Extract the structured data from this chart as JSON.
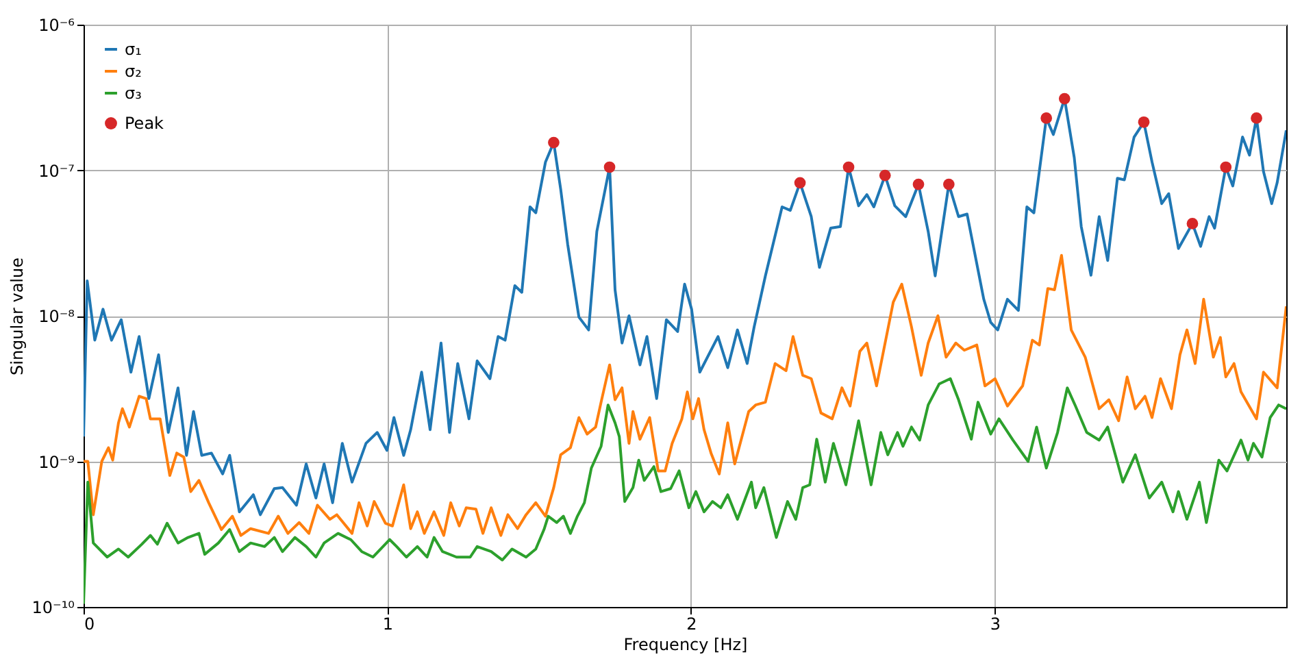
{
  "chart_data": {
    "type": "line",
    "xlabel": "Frequency [Hz]",
    "ylabel": "Singular value",
    "log": "y",
    "grid": true,
    "legend": "top left",
    "line_style": "solid",
    "marker": "none",
    "xlim": [
      0,
      3.96
    ],
    "xticks": [
      {
        "value": 0,
        "label": "0"
      },
      {
        "value": 1,
        "label": "1"
      },
      {
        "value": 2,
        "label": "2"
      },
      {
        "value": 3,
        "label": "3"
      }
    ],
    "ylim": [
      1e-10,
      1e-06
    ],
    "yticks": [
      {
        "value": 1e-10,
        "label": "10⁻¹⁰"
      },
      {
        "value": 1e-09,
        "label": "10⁻⁹"
      },
      {
        "value": 1e-08,
        "label": "10⁻⁸"
      },
      {
        "value": 1e-07,
        "label": "10⁻⁷"
      },
      {
        "value": 1e-06,
        "label": "10⁻⁶"
      }
    ],
    "series": [
      {
        "name": "σ₁",
        "color": "#1f77b4",
        "x": [
          0,
          0.012,
          0.037,
          0.064,
          0.092,
          0.124,
          0.156,
          0.183,
          0.215,
          0.247,
          0.279,
          0.311,
          0.339,
          0.362,
          0.389,
          0.421,
          0.458,
          0.481,
          0.513,
          0.559,
          0.582,
          0.628,
          0.655,
          0.701,
          0.733,
          0.765,
          0.792,
          0.82,
          0.852,
          0.884,
          0.93,
          0.967,
          0.999,
          1.022,
          1.054,
          1.077,
          1.113,
          1.141,
          1.177,
          1.205,
          1.232,
          1.269,
          1.296,
          1.338,
          1.365,
          1.388,
          1.42,
          1.443,
          1.47,
          1.489,
          1.521,
          1.548,
          1.571,
          1.594,
          1.631,
          1.663,
          1.69,
          1.732,
          1.75,
          1.773,
          1.796,
          1.832,
          1.855,
          1.887,
          1.919,
          1.956,
          1.979,
          2.002,
          2.029,
          2.089,
          2.121,
          2.153,
          2.185,
          2.208,
          2.245,
          2.3,
          2.327,
          2.359,
          2.396,
          2.423,
          2.46,
          2.492,
          2.519,
          2.552,
          2.579,
          2.602,
          2.639,
          2.671,
          2.707,
          2.749,
          2.781,
          2.804,
          2.849,
          2.881,
          2.909,
          2.964,
          2.987,
          3.01,
          3.042,
          3.078,
          3.106,
          3.129,
          3.17,
          3.193,
          3.23,
          3.262,
          3.285,
          3.317,
          3.344,
          3.372,
          3.404,
          3.427,
          3.459,
          3.491,
          3.518,
          3.55,
          3.573,
          3.605,
          3.651,
          3.678,
          3.706,
          3.724,
          3.761,
          3.784,
          3.816,
          3.839,
          3.862,
          3.885,
          3.912,
          3.93,
          3.96
        ],
        "values": [
          1.48e-09,
          1.74e-08,
          6.8e-09,
          1.11e-08,
          6.8e-09,
          9.4e-09,
          4.1e-09,
          7.2e-09,
          2.7e-09,
          5.4e-09,
          1.58e-09,
          3.2e-09,
          1.1e-09,
          2.2e-09,
          1.1e-09,
          1.14e-09,
          8.2e-10,
          1.1e-09,
          4.5e-10,
          5.9e-10,
          4.3e-10,
          6.5e-10,
          6.6e-10,
          5e-10,
          9.6e-10,
          5.6e-10,
          9.6e-10,
          5.2e-10,
          1.33e-09,
          7.2e-10,
          1.33e-09,
          1.58e-09,
          1.19e-09,
          2e-09,
          1.1e-09,
          1.65e-09,
          4.1e-09,
          1.65e-09,
          6.5e-09,
          1.58e-09,
          4.7e-09,
          1.96e-09,
          4.9e-09,
          3.7e-09,
          7.2e-09,
          6.8e-09,
          1.61e-08,
          1.45e-08,
          5.6e-08,
          5.1e-08,
          1.14e-07,
          1.55e-07,
          7.4e-08,
          3.1e-08,
          9.8e-09,
          8e-09,
          3.8e-08,
          1.05e-07,
          1.51e-08,
          6.5e-09,
          1e-08,
          4.6e-09,
          7.2e-09,
          2.7e-09,
          9.4e-09,
          7.8e-09,
          1.65e-08,
          1.11e-08,
          4.1e-09,
          7.2e-09,
          4.4e-09,
          8e-09,
          4.7e-09,
          8.4e-09,
          1.88e-08,
          5.6e-08,
          5.3e-08,
          8.2e-08,
          4.8e-08,
          2.15e-08,
          4e-08,
          4.1e-08,
          1.05e-07,
          5.7e-08,
          6.8e-08,
          5.6e-08,
          9.2e-08,
          5.7e-08,
          4.8e-08,
          8e-08,
          3.8e-08,
          1.88e-08,
          8e-08,
          4.8e-08,
          5e-08,
          1.3e-08,
          9e-09,
          8e-09,
          1.3e-08,
          1.09e-08,
          5.6e-08,
          5.1e-08,
          2.28e-07,
          1.76e-07,
          3.1e-07,
          1.22e-07,
          4.1e-08,
          1.9e-08,
          4.8e-08,
          2.4e-08,
          8.8e-08,
          8.6e-08,
          1.69e-07,
          2.14e-07,
          1.14e-07,
          5.9e-08,
          6.9e-08,
          2.9e-08,
          4.3e-08,
          3e-08,
          4.8e-08,
          4e-08,
          1.05e-07,
          7.8e-08,
          1.69e-07,
          1.27e-07,
          2.28e-07,
          9.8e-08,
          5.9e-08,
          8.2e-08,
          1.88e-07
        ]
      },
      {
        "name": "σ₂",
        "color": "#ff7f0e",
        "x": [
          0,
          0.014,
          0.032,
          0.06,
          0.082,
          0.096,
          0.115,
          0.128,
          0.151,
          0.183,
          0.206,
          0.22,
          0.252,
          0.284,
          0.307,
          0.33,
          0.353,
          0.38,
          0.412,
          0.454,
          0.49,
          0.518,
          0.55,
          0.609,
          0.641,
          0.673,
          0.71,
          0.742,
          0.77,
          0.811,
          0.834,
          0.884,
          0.907,
          0.934,
          0.957,
          0.994,
          1.017,
          1.054,
          1.077,
          1.099,
          1.122,
          1.154,
          1.186,
          1.209,
          1.237,
          1.26,
          1.292,
          1.315,
          1.342,
          1.374,
          1.397,
          1.429,
          1.457,
          1.489,
          1.521,
          1.548,
          1.571,
          1.603,
          1.631,
          1.658,
          1.686,
          1.704,
          1.732,
          1.75,
          1.773,
          1.796,
          1.809,
          1.832,
          1.864,
          1.892,
          1.915,
          1.938,
          1.97,
          1.988,
          2.006,
          2.025,
          2.043,
          2.066,
          2.093,
          2.121,
          2.144,
          2.19,
          2.213,
          2.245,
          2.277,
          2.313,
          2.336,
          2.368,
          2.396,
          2.428,
          2.465,
          2.497,
          2.524,
          2.556,
          2.579,
          2.611,
          2.666,
          2.694,
          2.726,
          2.758,
          2.781,
          2.813,
          2.84,
          2.872,
          2.9,
          2.941,
          2.968,
          3.001,
          3.042,
          3.092,
          3.124,
          3.147,
          3.175,
          3.197,
          3.22,
          3.252,
          3.298,
          3.344,
          3.376,
          3.408,
          3.436,
          3.463,
          3.495,
          3.518,
          3.546,
          3.582,
          3.61,
          3.633,
          3.66,
          3.688,
          3.72,
          3.743,
          3.761,
          3.788,
          3.811,
          3.862,
          3.885,
          3.93,
          3.96
        ],
        "values": [
          1e-09,
          1e-09,
          4.3e-10,
          1e-09,
          1.24e-09,
          1.02e-09,
          1.84e-09,
          2.3e-09,
          1.72e-09,
          2.8e-09,
          2.7e-09,
          1.96e-09,
          1.96e-09,
          8e-10,
          1.14e-09,
          1.07e-09,
          6.2e-10,
          7.4e-10,
          5.2e-10,
          3.4e-10,
          4.2e-10,
          3.1e-10,
          3.45e-10,
          3.2e-10,
          4.2e-10,
          3.2e-10,
          3.8e-10,
          3.2e-10,
          5e-10,
          4e-10,
          4.3e-10,
          3.2e-10,
          5.2e-10,
          3.6e-10,
          5.3e-10,
          3.76e-10,
          3.6e-10,
          6.9e-10,
          3.45e-10,
          4.5e-10,
          3.2e-10,
          4.5e-10,
          3.1e-10,
          5.2e-10,
          3.6e-10,
          4.8e-10,
          4.7e-10,
          3.2e-10,
          4.8e-10,
          3.1e-10,
          4.3e-10,
          3.45e-10,
          4.3e-10,
          5.2e-10,
          4.2e-10,
          6.6e-10,
          1.11e-09,
          1.24e-09,
          2e-09,
          1.54e-09,
          1.72e-09,
          2.55e-09,
          4.6e-09,
          2.65e-09,
          3.2e-09,
          1.33e-09,
          2.2e-09,
          1.42e-09,
          2e-09,
          8.6e-10,
          8.6e-10,
          1.33e-09,
          1.96e-09,
          3e-09,
          1.96e-09,
          2.7e-09,
          1.65e-09,
          1.14e-09,
          8.2e-10,
          1.84e-09,
          9.6e-10,
          2.2e-09,
          2.44e-09,
          2.55e-09,
          4.7e-09,
          4.2e-09,
          7.2e-09,
          3.9e-09,
          3.7e-09,
          2.15e-09,
          1.96e-09,
          3.2e-09,
          2.4e-09,
          5.7e-09,
          6.5e-09,
          3.3e-09,
          1.24e-08,
          1.65e-08,
          8.4e-09,
          3.9e-09,
          6.5e-09,
          1e-08,
          5.2e-09,
          6.5e-09,
          5.8e-09,
          6.3e-09,
          3.3e-09,
          3.7e-09,
          2.4e-09,
          3.3e-09,
          6.8e-09,
          6.3e-09,
          1.54e-08,
          1.51e-08,
          2.6e-08,
          8e-09,
          5.2e-09,
          2.3e-09,
          2.65e-09,
          1.9e-09,
          3.8e-09,
          2.3e-09,
          2.8e-09,
          2e-09,
          3.7e-09,
          2.3e-09,
          5.4e-09,
          8e-09,
          4.7e-09,
          1.3e-08,
          5.2e-09,
          7.1e-09,
          3.8e-09,
          4.7e-09,
          3e-09,
          1.96e-09,
          4.1e-09,
          3.2e-09,
          1.16e-08
        ]
      },
      {
        "name": "σ₃",
        "color": "#2ca02c",
        "x": [
          0,
          0.014,
          0.032,
          0.078,
          0.115,
          0.147,
          0.192,
          0.22,
          0.243,
          0.275,
          0.311,
          0.344,
          0.38,
          0.399,
          0.444,
          0.481,
          0.513,
          0.55,
          0.596,
          0.628,
          0.655,
          0.696,
          0.733,
          0.765,
          0.792,
          0.838,
          0.88,
          0.916,
          0.953,
          1.008,
          1.031,
          1.063,
          1.099,
          1.131,
          1.154,
          1.182,
          1.228,
          1.273,
          1.296,
          1.342,
          1.379,
          1.411,
          1.457,
          1.489,
          1.516,
          1.53,
          1.558,
          1.58,
          1.603,
          1.626,
          1.649,
          1.672,
          1.704,
          1.727,
          1.75,
          1.764,
          1.782,
          1.809,
          1.828,
          1.846,
          1.878,
          1.901,
          1.933,
          1.961,
          1.993,
          2.016,
          2.043,
          2.071,
          2.098,
          2.121,
          2.153,
          2.199,
          2.213,
          2.24,
          2.281,
          2.318,
          2.345,
          2.368,
          2.391,
          2.414,
          2.442,
          2.469,
          2.51,
          2.552,
          2.593,
          2.625,
          2.648,
          2.68,
          2.698,
          2.726,
          2.753,
          2.781,
          2.817,
          2.854,
          2.881,
          2.923,
          2.945,
          2.987,
          3.014,
          3.06,
          3.11,
          3.138,
          3.17,
          3.207,
          3.239,
          3.266,
          3.303,
          3.344,
          3.372,
          3.422,
          3.463,
          3.509,
          3.55,
          3.587,
          3.605,
          3.633,
          3.674,
          3.697,
          3.738,
          3.765,
          3.811,
          3.834,
          3.852,
          3.88,
          3.907,
          3.935,
          3.96
        ],
        "values": [
          1.05e-10,
          7.2e-10,
          2.75e-10,
          2.2e-10,
          2.5e-10,
          2.2e-10,
          2.7e-10,
          3.1e-10,
          2.7e-10,
          3.76e-10,
          2.75e-10,
          3e-10,
          3.2e-10,
          2.3e-10,
          2.75e-10,
          3.4e-10,
          2.4e-10,
          2.75e-10,
          2.6e-10,
          3e-10,
          2.4e-10,
          3e-10,
          2.6e-10,
          2.2e-10,
          2.75e-10,
          3.2e-10,
          2.9e-10,
          2.4e-10,
          2.2e-10,
          2.9e-10,
          2.6e-10,
          2.2e-10,
          2.6e-10,
          2.2e-10,
          3e-10,
          2.4e-10,
          2.2e-10,
          2.2e-10,
          2.6e-10,
          2.4e-10,
          2.1e-10,
          2.5e-10,
          2.2e-10,
          2.5e-10,
          3.4e-10,
          4.2e-10,
          3.8e-10,
          4.2e-10,
          3.2e-10,
          4.2e-10,
          5.2e-10,
          9e-10,
          1.27e-09,
          2.44e-09,
          1.84e-09,
          1.48e-09,
          5.3e-10,
          6.6e-10,
          1.02e-09,
          7.4e-10,
          9.2e-10,
          6.2e-10,
          6.5e-10,
          8.6e-10,
          4.8e-10,
          6.2e-10,
          4.5e-10,
          5.3e-10,
          4.8e-10,
          5.9e-10,
          4e-10,
          7.2e-10,
          4.8e-10,
          6.6e-10,
          3e-10,
          5.3e-10,
          4e-10,
          6.6e-10,
          6.9e-10,
          1.42e-09,
          7.2e-10,
          1.33e-09,
          6.9e-10,
          1.9e-09,
          6.9e-10,
          1.58e-09,
          1.11e-09,
          1.58e-09,
          1.27e-09,
          1.72e-09,
          1.4e-09,
          2.44e-09,
          3.4e-09,
          3.7e-09,
          2.65e-09,
          1.42e-09,
          2.55e-09,
          1.54e-09,
          1.96e-09,
          1.4e-09,
          1e-09,
          1.72e-09,
          9e-10,
          1.58e-09,
          3.2e-09,
          2.4e-09,
          1.58e-09,
          1.4e-09,
          1.72e-09,
          7.2e-10,
          1.11e-09,
          5.6e-10,
          7.2e-10,
          4.5e-10,
          6.2e-10,
          4e-10,
          7.2e-10,
          3.8e-10,
          1.02e-09,
          8.6e-10,
          1.4e-09,
          1.02e-09,
          1.33e-09,
          1.07e-09,
          2e-09,
          2.44e-09,
          2.3e-09
        ]
      },
      {
        "name": "Peak",
        "color": "#d62728",
        "type": "scatter",
        "marker": "circle",
        "x": [
          1.548,
          1.732,
          2.359,
          2.519,
          2.639,
          2.749,
          2.849,
          3.17,
          3.23,
          3.491,
          3.651,
          3.761,
          3.862
        ],
        "values": [
          1.55e-07,
          1.05e-07,
          8.2e-08,
          1.05e-07,
          9.2e-08,
          8e-08,
          8e-08,
          2.28e-07,
          3.1e-07,
          2.14e-07,
          4.3e-08,
          1.05e-07,
          2.28e-07
        ]
      }
    ]
  }
}
